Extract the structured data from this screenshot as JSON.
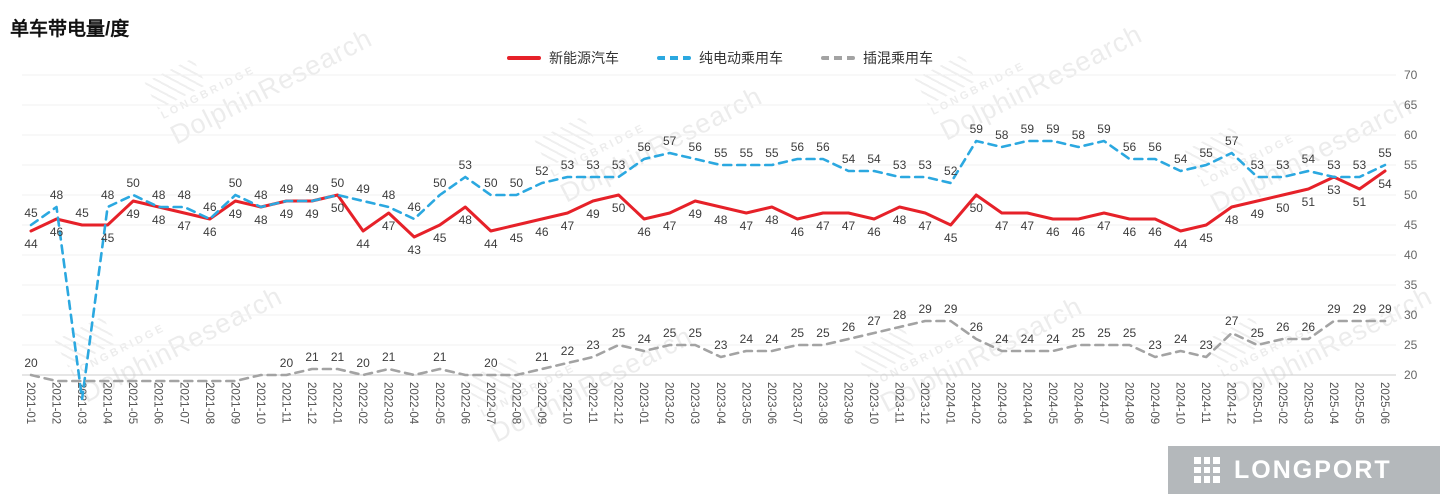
{
  "title": "单车带电量/度",
  "y_axis": {
    "ticks": [
      70,
      65,
      60,
      55,
      50,
      45,
      40,
      35,
      30,
      25,
      20
    ]
  },
  "watermark": {
    "small": "LONGBRIDGE",
    "large": "DolphinResearch",
    "brand": "LONGPORT"
  },
  "chart_data": {
    "type": "line",
    "title": "单车带电量/度",
    "ylim": [
      20,
      70
    ],
    "legend_position": "top",
    "categories": [
      "2021-01",
      "2021-02",
      "2021-03",
      "2021-04",
      "2021-05",
      "2021-06",
      "2021-07",
      "2021-08",
      "2021-09",
      "2021-10",
      "2021-11",
      "2021-12",
      "2022-01",
      "2022-02",
      "2022-03",
      "2022-04",
      "2022-05",
      "2022-06",
      "2022-07",
      "2022-08",
      "2022-09",
      "2022-10",
      "2022-11",
      "2022-12",
      "2023-01",
      "2023-02",
      "2023-03",
      "2023-04",
      "2023-05",
      "2023-06",
      "2023-07",
      "2023-08",
      "2023-09",
      "2023-10",
      "2023-11",
      "2023-12",
      "2024-01",
      "2024-02",
      "2024-03",
      "2024-04",
      "2024-05",
      "2024-06",
      "2024-07",
      "2024-08",
      "2024-09",
      "2024-10",
      "2024-11",
      "2024-12",
      "2025-01",
      "2025-02",
      "2025-03",
      "2025-04",
      "2025-05",
      "2025-06"
    ],
    "series": [
      {
        "name": "新能源汽车",
        "color": "#e62129",
        "dash": "solid",
        "values": [
          44,
          46,
          45,
          45,
          49,
          48,
          47,
          46,
          49,
          48,
          49,
          49,
          50,
          44,
          47,
          43,
          45,
          48,
          44,
          45,
          46,
          47,
          49,
          50,
          46,
          47,
          49,
          48,
          47,
          48,
          46,
          47,
          47,
          46,
          48,
          47,
          45,
          50,
          47,
          47,
          46,
          46,
          47,
          46,
          46,
          44,
          45,
          48,
          49,
          50,
          51,
          53,
          51,
          54
        ],
        "label_skip": []
      },
      {
        "name": "纯电动乘用车",
        "color": "#2ba8e0",
        "dash": "dashed",
        "values": [
          45,
          48,
          16,
          48,
          50,
          48,
          48,
          46,
          50,
          48,
          49,
          49,
          50,
          49,
          48,
          46,
          50,
          53,
          50,
          50,
          52,
          53,
          53,
          53,
          56,
          57,
          56,
          55,
          55,
          55,
          56,
          56,
          54,
          54,
          53,
          53,
          52,
          59,
          58,
          59,
          59,
          58,
          59,
          56,
          56,
          54,
          55,
          57,
          53,
          53,
          54,
          53,
          53,
          55
        ],
        "label_skip": [
          2
        ]
      },
      {
        "name": "插混乘用车",
        "color": "#a3a3a3",
        "dash": "dashed",
        "values": [
          20,
          19,
          19,
          19,
          19,
          19,
          19,
          19,
          19,
          20,
          20,
          21,
          21,
          20,
          21,
          20,
          21,
          20,
          20,
          20,
          21,
          22,
          23,
          25,
          24,
          25,
          25,
          23,
          24,
          24,
          25,
          25,
          26,
          27,
          28,
          29,
          29,
          26,
          24,
          24,
          24,
          25,
          25,
          25,
          23,
          24,
          23,
          27,
          25,
          26,
          26,
          29,
          29,
          29
        ],
        "label_skip": [
          1,
          2,
          3,
          4,
          5,
          6,
          7,
          8,
          9,
          15,
          17,
          19
        ]
      }
    ]
  }
}
